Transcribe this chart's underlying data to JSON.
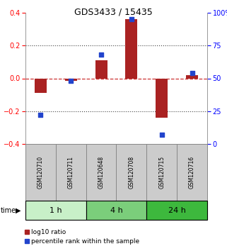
{
  "title": "GDS3433 / 15435",
  "samples": [
    "GSM120710",
    "GSM120711",
    "GSM120648",
    "GSM120708",
    "GSM120715",
    "GSM120716"
  ],
  "log10_ratio": [
    -0.09,
    -0.015,
    0.11,
    0.36,
    -0.24,
    0.02
  ],
  "percentile_rank": [
    22,
    48,
    68,
    95,
    7,
    54
  ],
  "time_groups": [
    {
      "label": "1 h",
      "start": 0,
      "end": 1,
      "color": "#c8f0c8"
    },
    {
      "label": "4 h",
      "start": 2,
      "end": 3,
      "color": "#7bce7b"
    },
    {
      "label": "24 h",
      "start": 4,
      "end": 5,
      "color": "#3db83d"
    }
  ],
  "ylim": [
    -0.4,
    0.4
  ],
  "y2lim": [
    0,
    100
  ],
  "bar_color_red": "#aa2222",
  "bar_color_blue": "#2244cc",
  "dotted_line_color": "#444444",
  "zero_line_color": "#cc3333",
  "sample_box_color": "#cccccc",
  "sample_box_edge": "#888888",
  "bar_width": 0.4,
  "scatter_size": 22,
  "title_fontsize": 9,
  "tick_fontsize": 7,
  "sample_fontsize": 5.5,
  "time_fontsize": 8,
  "legend_fontsize": 6.5
}
